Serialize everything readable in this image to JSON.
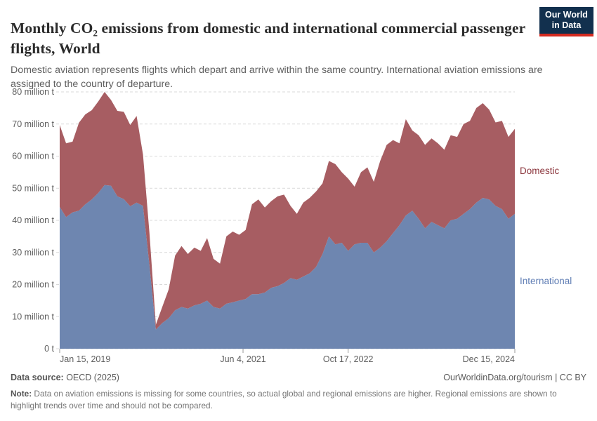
{
  "header": {
    "logo": {
      "line1": "Our World",
      "line2": "in Data",
      "bg_color": "#12304e",
      "accent_color": "#d42b21"
    }
  },
  "chart_data": {
    "type": "area",
    "stacked": true,
    "title": "Monthly CO₂ emissions from domestic and international commercial passenger flights, World",
    "subtitle": "Domestic aviation represents flights which depart and arrive within the same country. International aviation emissions are assigned to the country of departure.",
    "unit": "million t",
    "ylim": [
      0,
      80
    ],
    "grid": "dashed horizontal",
    "legend_position": "right-of-plot",
    "x": [
      "Jan 2019",
      "Feb 2019",
      "Mar 2019",
      "Apr 2019",
      "May 2019",
      "Jun 2019",
      "Jul 2019",
      "Aug 2019",
      "Sep 2019",
      "Oct 2019",
      "Nov 2019",
      "Dec 2019",
      "Jan 2020",
      "Feb 2020",
      "Mar 2020",
      "Apr 2020",
      "May 2020",
      "Jun 2020",
      "Jul 2020",
      "Aug 2020",
      "Sep 2020",
      "Oct 2020",
      "Nov 2020",
      "Dec 2020",
      "Jan 2021",
      "Feb 2021",
      "Mar 2021",
      "Apr 2021",
      "May 2021",
      "Jun 2021",
      "Jul 2021",
      "Aug 2021",
      "Sep 2021",
      "Oct 2021",
      "Nov 2021",
      "Dec 2021",
      "Jan 2022",
      "Feb 2022",
      "Mar 2022",
      "Apr 2022",
      "May 2022",
      "Jun 2022",
      "Jul 2022",
      "Aug 2022",
      "Sep 2022",
      "Oct 2022",
      "Nov 2022",
      "Dec 2022",
      "Jan 2023",
      "Feb 2023",
      "Mar 2023",
      "Apr 2023",
      "May 2023",
      "Jun 2023",
      "Jul 2023",
      "Aug 2023",
      "Sep 2023",
      "Oct 2023",
      "Nov 2023",
      "Dec 2023",
      "Jan 2024",
      "Feb 2024",
      "Mar 2024",
      "Apr 2024",
      "May 2024",
      "Jun 2024",
      "Jul 2024",
      "Aug 2024",
      "Sep 2024",
      "Oct 2024",
      "Nov 2024",
      "Dec 2024"
    ],
    "series": [
      {
        "name": "International",
        "color": "#6e86b0",
        "label_color": "#5f7db4",
        "values": [
          44.2,
          41.0,
          42.5,
          43.0,
          45.0,
          46.5,
          48.5,
          51.0,
          50.8,
          47.5,
          46.6,
          44.4,
          45.5,
          44.5,
          26.0,
          6.0,
          8.0,
          9.5,
          12.0,
          13.0,
          12.5,
          13.5,
          14.0,
          15.0,
          13.0,
          12.5,
          14.0,
          14.5,
          15.0,
          15.5,
          17.0,
          17.0,
          17.5,
          19.0,
          19.5,
          20.5,
          22.0,
          21.5,
          22.5,
          23.5,
          25.5,
          29.5,
          35.0,
          32.5,
          33.0,
          30.5,
          32.5,
          33.0,
          33.0,
          30.0,
          31.5,
          33.5,
          36.0,
          38.5,
          41.5,
          43.0,
          40.5,
          37.5,
          39.5,
          38.5,
          37.5,
          40.0,
          40.5,
          42.0,
          43.5,
          45.5,
          47.0,
          46.5,
          44.5,
          43.5,
          40.5,
          42.0
        ]
      },
      {
        "name": "Domestic",
        "color": "#a75d62",
        "label_color": "#8c373e",
        "values": [
          25.5,
          23.0,
          22.0,
          27.4,
          28.0,
          27.8,
          28.5,
          29.0,
          26.7,
          26.6,
          27.2,
          25.3,
          27.0,
          16.0,
          10.0,
          1.5,
          5.0,
          9.0,
          17.0,
          19.0,
          17.0,
          18.0,
          16.5,
          19.5,
          15.0,
          14.0,
          21.0,
          22.0,
          20.5,
          21.5,
          28.0,
          29.5,
          26.5,
          27.0,
          28.0,
          27.5,
          22.5,
          20.5,
          23.0,
          23.5,
          23.5,
          22.0,
          23.5,
          25.0,
          22.0,
          22.5,
          18.0,
          22.0,
          23.5,
          22.0,
          27.0,
          30.0,
          29.0,
          25.5,
          30.0,
          25.0,
          26.0,
          26.0,
          26.0,
          25.5,
          24.5,
          26.5,
          25.5,
          28.0,
          27.5,
          29.5,
          29.5,
          28.0,
          26.0,
          27.5,
          25.5,
          26.5
        ]
      }
    ],
    "yticks": [
      {
        "value": 0,
        "label": "0 t"
      },
      {
        "value": 10,
        "label": "10 million t"
      },
      {
        "value": 20,
        "label": "20 million t"
      },
      {
        "value": 30,
        "label": "30 million t"
      },
      {
        "value": 40,
        "label": "40 million t"
      },
      {
        "value": 50,
        "label": "50 million t"
      },
      {
        "value": 60,
        "label": "60 million t"
      },
      {
        "value": 70,
        "label": "70 million t"
      },
      {
        "value": 80,
        "label": "80 million t"
      }
    ],
    "xticks": [
      {
        "pos": 0,
        "label": "Jan 15, 2019",
        "anchor": "start"
      },
      {
        "pos": 28.6,
        "label": "Jun 4, 2021",
        "anchor": "middle"
      },
      {
        "pos": 45.0,
        "label": "Oct 17, 2022",
        "anchor": "middle"
      },
      {
        "pos": 71,
        "label": "Dec 15, 2024",
        "anchor": "end"
      }
    ],
    "colors": {
      "grid": "#d9d9d9",
      "tick": "#999999"
    }
  },
  "footer": {
    "source_label": "Data source:",
    "source_value": " OECD (2025)",
    "credit_right": "OurWorldinData.org/tourism | CC BY",
    "note_label": "Note:",
    "note_text": " Data on aviation emissions is missing for some countries, so actual global and regional emissions are higher. Regional emissions are shown to highlight trends over time and should not be compared."
  }
}
